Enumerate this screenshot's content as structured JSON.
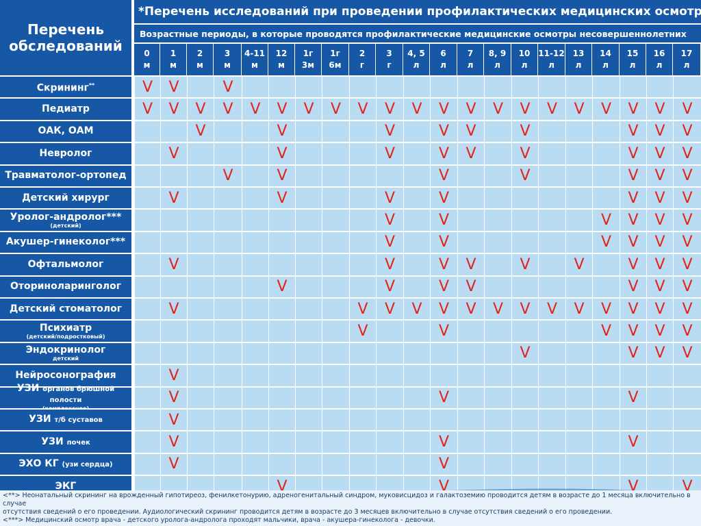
{
  "header": {
    "left_title_line1": "Перечень",
    "left_title_line2": "обследований",
    "title": "*Перечень исследований при проведении профилактических медицинских осмотров",
    "subtitle": "Возрастные периоды, в которые проводятся профилактические медицинские осмотры несовершеннолетних"
  },
  "ages": [
    {
      "top": "0",
      "bottom": "м"
    },
    {
      "top": "1",
      "bottom": "м"
    },
    {
      "top": "2",
      "bottom": "м"
    },
    {
      "top": "3",
      "bottom": "м"
    },
    {
      "top": "4-11",
      "bottom": "м"
    },
    {
      "top": "12",
      "bottom": "м"
    },
    {
      "top": "1г",
      "bottom": "3м"
    },
    {
      "top": "1г",
      "bottom": "6м"
    },
    {
      "top": "2",
      "bottom": "г"
    },
    {
      "top": "3",
      "bottom": "г"
    },
    {
      "top": "4, 5",
      "bottom": "л"
    },
    {
      "top": "6",
      "bottom": "л"
    },
    {
      "top": "7",
      "bottom": "л"
    },
    {
      "top": "8, 9",
      "bottom": "л"
    },
    {
      "top": "10",
      "bottom": "л"
    },
    {
      "top": "11-12",
      "bottom": "л"
    },
    {
      "top": "13",
      "bottom": "л"
    },
    {
      "top": "14",
      "bottom": "л"
    },
    {
      "top": "15",
      "bottom": "л"
    },
    {
      "top": "16",
      "bottom": "л"
    },
    {
      "top": "17",
      "bottom": "л"
    }
  ],
  "check_mark": "V",
  "rows": [
    {
      "label": "Скрининг",
      "label_sup": "**",
      "label_inline": "",
      "label_sub": "",
      "checks": [
        0,
        1,
        3
      ]
    },
    {
      "label": "Педиатр",
      "label_sup": "",
      "label_inline": "",
      "label_sub": "",
      "checks": [
        0,
        1,
        2,
        3,
        4,
        5,
        6,
        7,
        8,
        9,
        10,
        11,
        12,
        13,
        14,
        15,
        16,
        17,
        18,
        19,
        20
      ]
    },
    {
      "label": "ОАК, ОАМ",
      "label_sup": "",
      "label_inline": "",
      "label_sub": "",
      "checks": [
        2,
        5,
        9,
        11,
        12,
        14,
        18,
        19,
        20
      ]
    },
    {
      "label": "Невролог",
      "label_sup": "",
      "label_inline": "",
      "label_sub": "",
      "checks": [
        1,
        5,
        9,
        11,
        12,
        14,
        18,
        19,
        20
      ]
    },
    {
      "label": "Травматолог-ортопед",
      "label_sup": "",
      "label_inline": "",
      "label_sub": "",
      "checks": [
        3,
        5,
        11,
        14,
        18,
        19,
        20
      ]
    },
    {
      "label": "Детский хирург",
      "label_sup": "",
      "label_inline": "",
      "label_sub": "",
      "checks": [
        1,
        5,
        9,
        11,
        18,
        19,
        20
      ]
    },
    {
      "label": "Уролог-андролог***",
      "label_sup": "",
      "label_inline": "",
      "label_sub": "(детский)",
      "checks": [
        9,
        11,
        17,
        18,
        19,
        20
      ]
    },
    {
      "label": "Акушер-гинеколог***",
      "label_sup": "",
      "label_inline": "",
      "label_sub": "",
      "checks": [
        9,
        11,
        17,
        18,
        19,
        20
      ]
    },
    {
      "label": "Офтальмолог",
      "label_sup": "",
      "label_inline": "",
      "label_sub": "",
      "checks": [
        1,
        9,
        11,
        12,
        14,
        16,
        18,
        19,
        20
      ]
    },
    {
      "label": "Оториноларинголог",
      "label_sup": "",
      "label_inline": "",
      "label_sub": "",
      "checks": [
        5,
        9,
        11,
        12,
        18,
        19,
        20
      ]
    },
    {
      "label": "Детский стоматолог",
      "label_sup": "",
      "label_inline": "",
      "label_sub": "",
      "checks": [
        1,
        8,
        9,
        10,
        11,
        12,
        13,
        14,
        15,
        16,
        17,
        18,
        19,
        20
      ]
    },
    {
      "label": "Психиатр",
      "label_sup": "",
      "label_inline": "",
      "label_sub": "(детский/подростковый)",
      "checks": [
        8,
        11,
        17,
        18,
        19,
        20
      ]
    },
    {
      "label": "Эндокринолог",
      "label_sup": "",
      "label_inline": "",
      "label_sub": "детский",
      "checks": [
        14,
        18,
        19,
        20
      ]
    },
    {
      "label": "Нейросонография",
      "label_sup": "",
      "label_inline": "",
      "label_sub": "",
      "checks": [
        1
      ]
    },
    {
      "label": "УЗИ",
      "label_sup": "",
      "label_inline": "органов брюшной полости",
      "label_sub": "(комплексное)",
      "checks": [
        1,
        11,
        18
      ]
    },
    {
      "label": "УЗИ",
      "label_sup": "",
      "label_inline": "т/б суставов",
      "label_sub": "",
      "checks": [
        1
      ]
    },
    {
      "label": "УЗИ",
      "label_sup": "",
      "label_inline": "почек",
      "label_sub": "",
      "checks": [
        1,
        11,
        18
      ]
    },
    {
      "label": "ЭХО КГ",
      "label_sup": "",
      "label_inline": "(узи сердца)",
      "label_sub": "",
      "checks": [
        1,
        11
      ]
    },
    {
      "label": "ЭКГ",
      "label_sup": "",
      "label_inline": "",
      "label_sub": "",
      "checks": [
        5,
        11,
        18,
        20
      ]
    }
  ],
  "footnotes": {
    "line1": "<**> Неонатальный скрининг на врожденный гипотиреоз, фенилкетонурию, адреногенитальный синдром, муковисцидоз и галактоземию проводится детям в возрасте до 1 месяца включительно в случае",
    "line2": "отсутствия сведений о его проведении. Аудиологический скрининг проводится детям в возрасте до 3 месяцев включительно в случае отсутствия сведений о его проведении.",
    "line3": "<***> Медицинский осмотр врача - детского уролога-андролога проходят мальчики, врача - акушера-гинеколога - девочки."
  },
  "colors": {
    "header_bg": "#1658a6",
    "cell_bg": "#b9dcf2",
    "check": "#e2231a"
  }
}
